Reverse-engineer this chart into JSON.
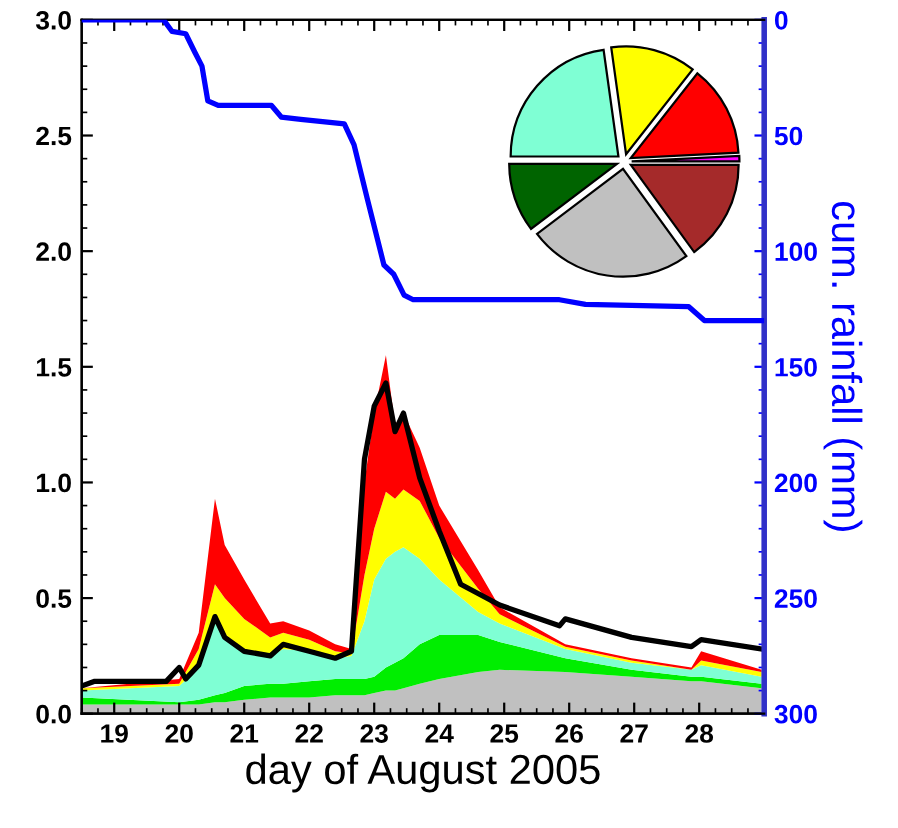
{
  "chart_data": [
    {
      "type": "area",
      "stacked": true,
      "xlabel": "day of August 2005",
      "y2label": "cum. rainfall (mm)",
      "x": [
        18.5,
        20.0,
        20.3,
        20.55,
        20.7,
        21.0,
        21.4,
        21.6,
        22.0,
        22.4,
        22.65,
        22.85,
        23.0,
        23.18,
        23.32,
        23.45,
        23.7,
        24.0,
        24.6,
        24.93,
        25.94,
        26.96,
        27.88,
        28.03,
        28.96
      ],
      "series": [
        {
          "color": "#c0c0c0",
          "values": [
            0.04,
            0.04,
            0.04,
            0.05,
            0.05,
            0.06,
            0.07,
            0.07,
            0.07,
            0.08,
            0.08,
            0.08,
            0.09,
            0.1,
            0.1,
            0.11,
            0.13,
            0.15,
            0.18,
            0.19,
            0.18,
            0.16,
            0.14,
            0.14,
            0.11
          ]
        },
        {
          "color": "#00ee00",
          "values": [
            0.03,
            0.01,
            0.02,
            0.03,
            0.04,
            0.06,
            0.06,
            0.06,
            0.07,
            0.07,
            0.07,
            0.07,
            0.07,
            0.1,
            0.12,
            0.13,
            0.17,
            0.19,
            0.16,
            0.12,
            0.06,
            0.03,
            0.02,
            0.02,
            0.02
          ]
        },
        {
          "color": "#7fffd4",
          "values": [
            0.03,
            0.07,
            0.14,
            0.34,
            0.24,
            0.15,
            0.12,
            0.15,
            0.13,
            0.09,
            0.1,
            0.25,
            0.42,
            0.47,
            0.48,
            0.48,
            0.37,
            0.24,
            0.1,
            0.08,
            0.04,
            0.03,
            0.03,
            0.05,
            0.03
          ]
        },
        {
          "color": "#ffff00",
          "values": [
            0.01,
            0.01,
            0.08,
            0.14,
            0.17,
            0.14,
            0.08,
            0.07,
            0.05,
            0.03,
            0.01,
            0.2,
            0.22,
            0.29,
            0.23,
            0.25,
            0.25,
            0.18,
            0.1,
            0.04,
            0.01,
            0.01,
            0.0,
            0.02,
            0.02
          ]
        },
        {
          "color": "#ff0000",
          "values": [
            0.0,
            0.02,
            0.07,
            0.37,
            0.23,
            0.17,
            0.06,
            0.05,
            0.04,
            0.03,
            0.02,
            0.4,
            0.5,
            0.59,
            0.32,
            0.33,
            0.23,
            0.14,
            0.08,
            0.03,
            0.01,
            0.01,
            0.01,
            0.04,
            0.01
          ]
        },
        {
          "type": "line",
          "color": "#000000",
          "x": [
            18.5,
            18.7,
            19.8,
            20.0,
            20.1,
            20.3,
            20.55,
            20.7,
            21.0,
            21.4,
            21.6,
            22.0,
            22.4,
            22.65,
            22.85,
            23.0,
            23.18,
            23.32,
            23.45,
            23.7,
            24.0,
            24.33,
            24.93,
            25.85,
            25.94,
            26.96,
            27.88,
            28.03,
            28.96
          ],
          "values": [
            0.12,
            0.14,
            0.14,
            0.2,
            0.15,
            0.21,
            0.42,
            0.33,
            0.27,
            0.25,
            0.3,
            0.27,
            0.24,
            0.27,
            1.1,
            1.33,
            1.43,
            1.22,
            1.3,
            1.02,
            0.79,
            0.56,
            0.47,
            0.38,
            0.41,
            0.33,
            0.29,
            0.32,
            0.28
          ]
        },
        {
          "type": "line",
          "axis": "y2",
          "color": "#0000ff",
          "x": [
            18.5,
            19.76,
            19.89,
            20.1,
            20.24,
            20.35,
            20.44,
            20.6,
            21.42,
            21.57,
            21.87,
            22.54,
            22.69,
            22.89,
            23.15,
            23.3,
            23.46,
            23.6,
            25.85,
            26.25,
            27.84,
            28.08,
            28.96
          ],
          "values": [
            0,
            0,
            5,
            6,
            14,
            20,
            35,
            37,
            37,
            42,
            43,
            45,
            54,
            77,
            106,
            110,
            119,
            121,
            121,
            123,
            124,
            130,
            130
          ]
        }
      ],
      "xlim": [
        18.5,
        29
      ],
      "xticks": [
        19,
        20,
        21,
        22,
        23,
        24,
        25,
        26,
        27,
        28
      ],
      "ylim": [
        0,
        3
      ],
      "yticks": [
        {
          "value": 0,
          "label": "0.0"
        },
        {
          "value": 0.5,
          "label": "0.5"
        },
        {
          "value": 1,
          "label": "1.0"
        },
        {
          "value": 1.5,
          "label": "1.5"
        },
        {
          "value": 2,
          "label": "2.0"
        },
        {
          "value": 2.5,
          "label": "2.5"
        },
        {
          "value": 3,
          "label": "3.0"
        }
      ],
      "y2lim": [
        300,
        0
      ],
      "y2ticks": [
        0,
        50,
        100,
        150,
        200,
        250,
        300
      ],
      "grid": false,
      "legend": false
    },
    {
      "type": "pie",
      "categories": [
        null,
        null,
        null,
        null,
        null,
        null,
        null
      ],
      "values": [
        0.8,
        13.6,
        12.8,
        22.8,
        10.3,
        24.7,
        15.0
      ],
      "colors": [
        "#ff00ff",
        "#ff0000",
        "#ffff00",
        "#7fffd4",
        "#006400",
        "#c0c0c0",
        "#a52a2a"
      ]
    }
  ]
}
